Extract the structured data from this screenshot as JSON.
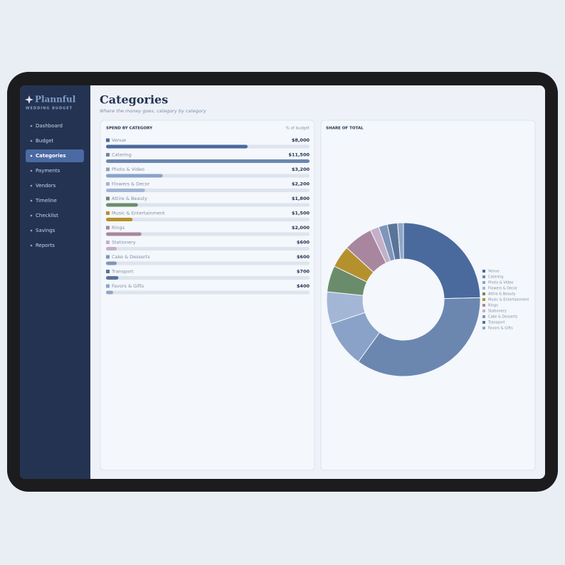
{
  "app": {
    "logo": "Plannful",
    "tagline": "WEDDING BUDGET"
  },
  "nav": {
    "items": [
      "Dashboard",
      "Budget",
      "Categories",
      "Payments",
      "Vendors",
      "Timeline",
      "Checklist",
      "Savings",
      "Reports"
    ],
    "active_index": 2
  },
  "header": {
    "title": "Categories",
    "subtitle": "Where the money goes, category by category"
  },
  "spend": {
    "title": "SPEND BY CATEGORY",
    "column_label": "% of budget",
    "rows": [
      {
        "name": "Venue",
        "amount": 8000,
        "amount_label": "$8,000",
        "color": "#4a6a9e"
      },
      {
        "name": "Catering",
        "amount": 11500,
        "amount_label": "$11,500",
        "color": "#6b87b0"
      },
      {
        "name": "Photo & Video",
        "amount": 3200,
        "amount_label": "$3,200",
        "color": "#8aa2c8"
      },
      {
        "name": "Flowers & Decor",
        "amount": 2200,
        "amount_label": "$2,200",
        "color": "#a3b6d6"
      },
      {
        "name": "Attire & Beauty",
        "amount": 1800,
        "amount_label": "$1,800",
        "color": "#6b8c6b"
      },
      {
        "name": "Music & Entertainment",
        "amount": 1500,
        "amount_label": "$1,500",
        "color": "#b5912e"
      },
      {
        "name": "Rings",
        "amount": 2000,
        "amount_label": "$2,000",
        "color": "#a8879e"
      },
      {
        "name": "Stationery",
        "amount": 600,
        "amount_label": "$600",
        "color": "#c4b0c8"
      },
      {
        "name": "Cake & Desserts",
        "amount": 600,
        "amount_label": "$600",
        "color": "#7e96bb"
      },
      {
        "name": "Transport",
        "amount": 700,
        "amount_label": "$700",
        "color": "#5a7499"
      },
      {
        "name": "Favors & Gifts",
        "amount": 400,
        "amount_label": "$400",
        "color": "#8fa6c6"
      }
    ]
  },
  "share": {
    "title": "SHARE OF TOTAL"
  }
}
